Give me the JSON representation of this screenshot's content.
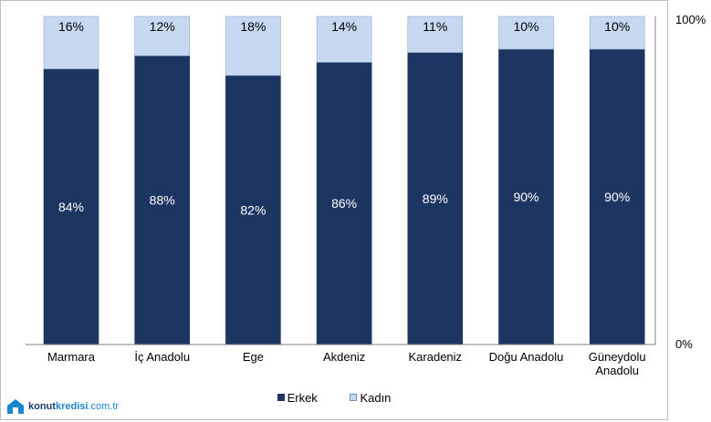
{
  "chart_data": {
    "type": "bar",
    "stacked": true,
    "categories": [
      "Marmara",
      "İç Anadolu",
      "Ege",
      "Akdeniz",
      "Karadeniz",
      "Doğu Anadolu",
      "Güneydolu Anadolu"
    ],
    "series": [
      {
        "name": "Erkek",
        "values": [
          84,
          88,
          82,
          86,
          89,
          90,
          90
        ],
        "color": "#1c3661"
      },
      {
        "name": "Kadın",
        "values": [
          16,
          12,
          18,
          14,
          11,
          10,
          10
        ],
        "color": "#c6d9f1"
      }
    ],
    "ylim": [
      0,
      100
    ],
    "y_axis_position": "right",
    "y_tick_labels": [
      "0%",
      "100%"
    ],
    "data_label_suffix": "%",
    "legend_position": "bottom",
    "grid": false
  },
  "logo": {
    "part1": "konut",
    "part2": "kredisi",
    "part3": ".com.tr"
  }
}
